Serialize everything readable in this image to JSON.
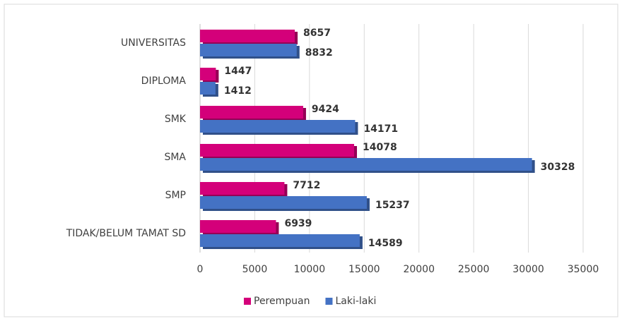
{
  "chart_data": {
    "type": "bar",
    "orientation": "horizontal",
    "categories": [
      "UNIVERSITAS",
      "DIPLOMA",
      "SMK",
      "SMA",
      "SMP",
      "TIDAK/BELUM TAMAT SD"
    ],
    "series": [
      {
        "name": "Perempuan",
        "color": "#d4007a",
        "values": [
          8657,
          1447,
          9424,
          14078,
          7712,
          6939
        ]
      },
      {
        "name": "Laki-laki",
        "color": "#4472c4",
        "values": [
          8832,
          1412,
          14171,
          30328,
          15237,
          14589
        ]
      }
    ],
    "xlim": [
      0,
      35000
    ],
    "xticks": [
      0,
      5000,
      10000,
      15000,
      20000,
      25000,
      30000,
      35000
    ],
    "grid": true,
    "legend": "bottom"
  }
}
